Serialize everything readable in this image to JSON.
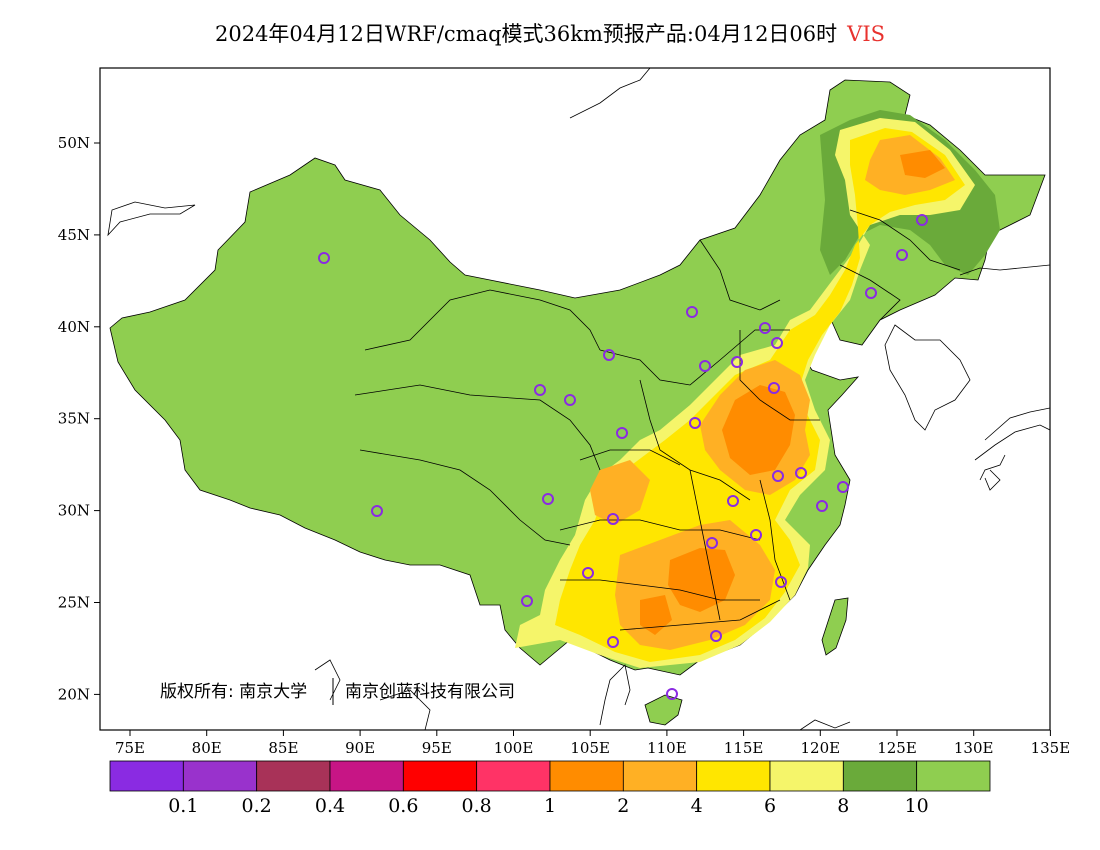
{
  "header": {
    "title": "2024年04月12日WRF/cmaq模式36km预报产品:04月12日06时",
    "variable": "VIS"
  },
  "map": {
    "lon_labels": [
      "75E",
      "80E",
      "85E",
      "90E",
      "95E",
      "100E",
      "105E",
      "110E",
      "115E",
      "120E",
      "125E",
      "130E",
      "135E"
    ],
    "lat_labels": [
      "50N",
      "45N",
      "40N",
      "35N",
      "30N",
      "25N",
      "20N"
    ],
    "copyright": "版权所有: 南京大学",
    "copyright_2": "南京创蓝科技有限公司"
  },
  "legend": {
    "colors": [
      "#8a2be2",
      "#9932cc",
      "#a83258",
      "#c71585",
      "#ff0000",
      "#ff3366",
      "#ff8c00",
      "#ffb024",
      "#ffe600",
      "#f5f56a",
      "#6aaa3a",
      "#8fce50"
    ],
    "labels": [
      "0.1",
      "0.2",
      "0.4",
      "0.6",
      "0.8",
      "1",
      "2",
      "4",
      "6",
      "8",
      "10"
    ]
  },
  "colors": {
    "land_good": "#8fce50",
    "station_marker": "#8a2be2"
  }
}
